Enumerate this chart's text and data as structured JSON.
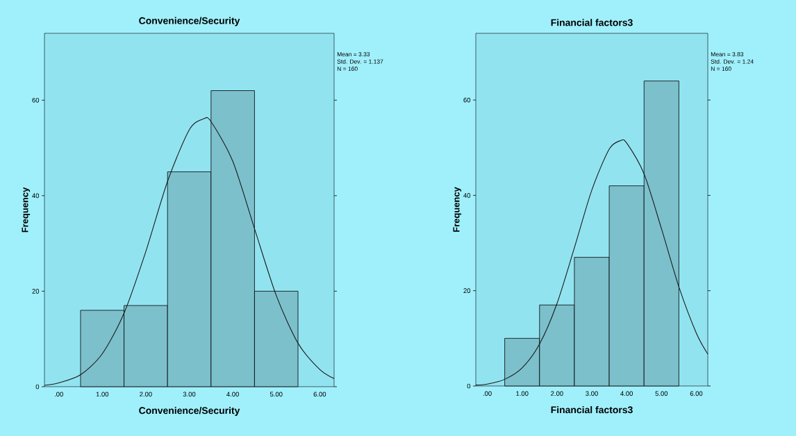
{
  "chart_data": [
    {
      "type": "histogram",
      "title": "Convenience/Security",
      "xlabel": "Convenience/Security",
      "ylabel": "Frequency",
      "annotations": [
        "Mean = 3.33",
        "Std. Dev. = 1.137",
        "N = 160"
      ],
      "xlim": [
        -0.33,
        6.33
      ],
      "ylim": [
        0,
        74
      ],
      "xticks": [
        {
          "value": 0,
          "label": ".00"
        },
        {
          "value": 1,
          "label": "1.00"
        },
        {
          "value": 2,
          "label": "2.00"
        },
        {
          "value": 3,
          "label": "3.00"
        },
        {
          "value": 4,
          "label": "4.00"
        },
        {
          "value": 5,
          "label": "5.00"
        },
        {
          "value": 6,
          "label": "6.00"
        }
      ],
      "yticks": [
        0,
        20,
        40,
        60
      ],
      "series": [
        {
          "type": "histogram",
          "color": "#7cc0cc",
          "bins": [
            0.5,
            1.5,
            2.5,
            3.5,
            4.5,
            5.5
          ],
          "values": [
            16,
            17,
            45,
            62,
            20
          ]
        },
        {
          "type": "line",
          "color": "#1a1a1a",
          "x": [
            -0.33,
            0,
            0.5,
            1,
            1.5,
            2,
            2.5,
            3,
            3.33,
            3.5,
            4,
            4.5,
            5,
            5.5,
            6,
            6.33
          ],
          "values": [
            0.3,
            0.8,
            2.5,
            6.9,
            15.4,
            28.3,
            43.0,
            53.8,
            56.1,
            55.5,
            47.2,
            33.1,
            19.1,
            9.1,
            3.6,
            1.7
          ]
        }
      ]
    },
    {
      "type": "histogram",
      "title": "Financial factors3",
      "xlabel": "Financial factors3",
      "ylabel": "Frequency",
      "annotations": [
        "Mean = 3.83",
        "Std. Dev. = 1.24",
        "N = 160"
      ],
      "xlim": [
        -0.33,
        6.33
      ],
      "ylim": [
        0,
        74
      ],
      "xticks": [
        {
          "value": 0,
          "label": ".00"
        },
        {
          "value": 1,
          "label": "1.00"
        },
        {
          "value": 2,
          "label": "2.00"
        },
        {
          "value": 3,
          "label": "3.00"
        },
        {
          "value": 4,
          "label": "4.00"
        },
        {
          "value": 5,
          "label": "5.00"
        },
        {
          "value": 6,
          "label": "6.00"
        }
      ],
      "yticks": [
        0,
        20,
        40,
        60
      ],
      "series": [
        {
          "type": "histogram",
          "color": "#7cc0cc",
          "bins": [
            0.5,
            1.5,
            2.5,
            3.5,
            4.5,
            5.5
          ],
          "values": [
            10,
            17,
            27,
            42,
            64
          ]
        },
        {
          "type": "line",
          "color": "#1a1a1a",
          "x": [
            -0.33,
            0,
            0.5,
            1,
            1.5,
            2,
            2.5,
            3,
            3.5,
            3.83,
            4,
            4.5,
            5,
            5.5,
            6,
            6.33
          ],
          "values": [
            0.2,
            0.4,
            1.4,
            3.8,
            8.8,
            17.3,
            29.0,
            41.1,
            49.7,
            51.5,
            51.0,
            44.5,
            33.0,
            20.8,
            11.1,
            6.7
          ]
        }
      ]
    }
  ]
}
